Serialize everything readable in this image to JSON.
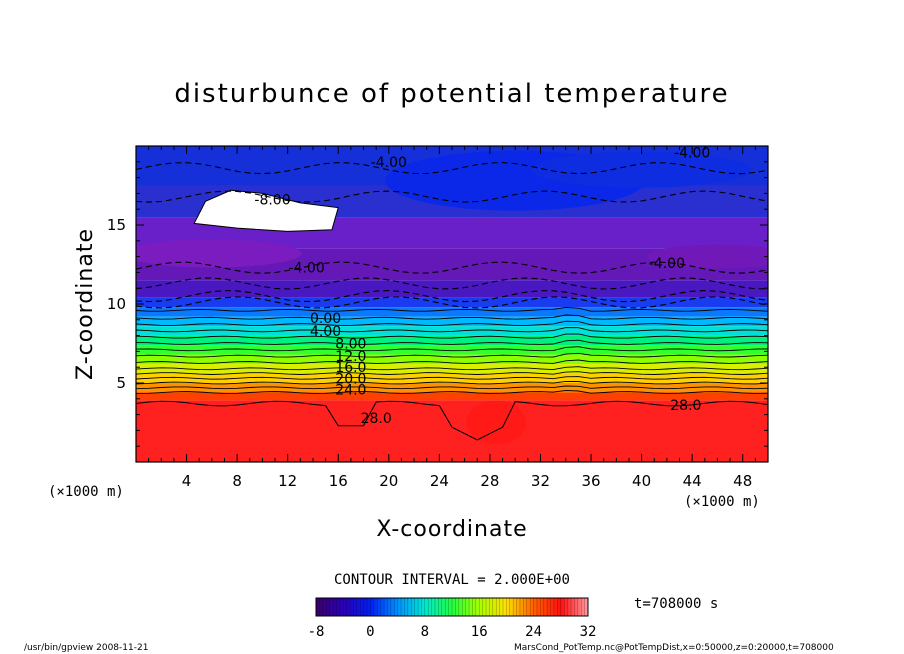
{
  "chart_data": {
    "type": "heatmap",
    "title": "disturbunce of potential temperature",
    "xlabel": "X-coordinate",
    "ylabel": "Z-coordinate",
    "x_unit": "(×1000 m)",
    "y_unit": "(×1000 m)",
    "xlim": [
      0,
      50
    ],
    "ylim": [
      0,
      20
    ],
    "x_ticks": [
      4,
      8,
      12,
      16,
      20,
      24,
      28,
      32,
      36,
      40,
      44,
      48
    ],
    "y_ticks": [
      5,
      10,
      15
    ],
    "contour_interval_text": "CONTOUR INTERVAL = 2.000E+00",
    "colorbar_ticks": [
      -8,
      0,
      8,
      16,
      24,
      32
    ],
    "colorbar_range": [
      -8,
      32
    ],
    "contour_labels": [
      {
        "text": "-4.00",
        "x": 20.0,
        "z": 19.0
      },
      {
        "text": "-4.00",
        "x": 44.0,
        "z": 19.6
      },
      {
        "text": "-8.00",
        "x": 10.8,
        "z": 16.6
      },
      {
        "text": "-4.00",
        "x": 13.5,
        "z": 12.3
      },
      {
        "text": "-4.00",
        "x": 42.0,
        "z": 12.6
      },
      {
        "text": "0.00",
        "x": 15.0,
        "z": 9.1
      },
      {
        "text": "4.00",
        "x": 15.0,
        "z": 8.3
      },
      {
        "text": "8.00",
        "x": 17.0,
        "z": 7.5
      },
      {
        "text": "12.0",
        "x": 17.0,
        "z": 6.7
      },
      {
        "text": "16.0",
        "x": 17.0,
        "z": 6.0
      },
      {
        "text": "20.0",
        "x": 17.0,
        "z": 5.3
      },
      {
        "text": "24.0",
        "x": 17.0,
        "z": 4.6
      },
      {
        "text": "28.0",
        "x": 19.0,
        "z": 2.8
      },
      {
        "text": "28.0",
        "x": 43.5,
        "z": 3.6
      }
    ],
    "grid": false
  },
  "annotations": {
    "time_label": "t=708000 s",
    "footer_left": "/usr/bin/gpview   2008-11-21",
    "footer_right": "MarsCond_PotTemp.nc@PotTempDist,x=0:50000,z=0:20000,t=708000"
  }
}
